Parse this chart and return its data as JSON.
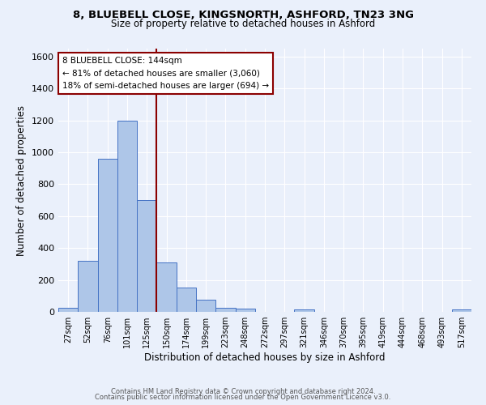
{
  "title1": "8, BLUEBELL CLOSE, KINGSNORTH, ASHFORD, TN23 3NG",
  "title2": "Size of property relative to detached houses in Ashford",
  "xlabel": "Distribution of detached houses by size in Ashford",
  "ylabel": "Number of detached properties",
  "categories": [
    "27sqm",
    "52sqm",
    "76sqm",
    "101sqm",
    "125sqm",
    "150sqm",
    "174sqm",
    "199sqm",
    "223sqm",
    "248sqm",
    "272sqm",
    "297sqm",
    "321sqm",
    "346sqm",
    "370sqm",
    "395sqm",
    "419sqm",
    "444sqm",
    "468sqm",
    "493sqm",
    "517sqm"
  ],
  "values": [
    25,
    320,
    960,
    1200,
    700,
    310,
    150,
    75,
    25,
    20,
    0,
    0,
    15,
    0,
    0,
    0,
    0,
    0,
    0,
    0,
    15
  ],
  "bar_color": "#aec6e8",
  "bar_edge_color": "#4472c4",
  "vline_color": "#8b0000",
  "annotation_title": "8 BLUEBELL CLOSE: 144sqm",
  "annotation_line1": "← 81% of detached houses are smaller (3,060)",
  "annotation_line2": "18% of semi-detached houses are larger (694) →",
  "annotation_box_color": "#ffffff",
  "annotation_box_edge": "#8b0000",
  "ylim": [
    0,
    1650
  ],
  "yticks": [
    0,
    200,
    400,
    600,
    800,
    1000,
    1200,
    1400,
    1600
  ],
  "background_color": "#eaf0fb",
  "grid_color": "#ffffff",
  "footer1": "Contains HM Land Registry data © Crown copyright and database right 2024.",
  "footer2": "Contains public sector information licensed under the Open Government Licence v3.0."
}
